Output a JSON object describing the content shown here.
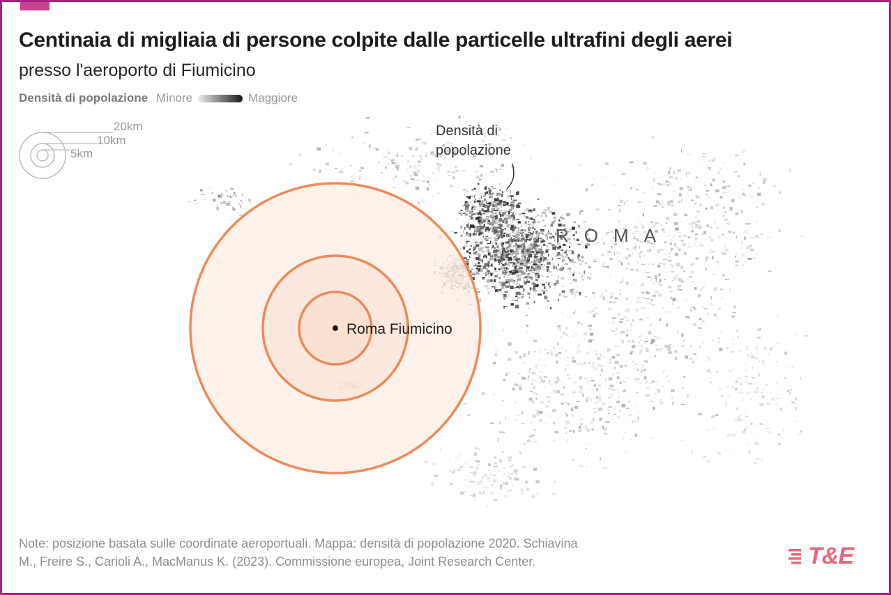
{
  "title": "Centinaia di migliaia di persone colpite dalle particelle ultrafini degli aerei",
  "subtitle": "presso l'aeroporto di Fiumicino",
  "legend": {
    "label": "Densità di popolazione",
    "min_label": "Minore",
    "max_label": "Maggiore"
  },
  "scale": {
    "labels": [
      "20km",
      "10km",
      "5km"
    ]
  },
  "map": {
    "radii_km": [
      20,
      10,
      5
    ],
    "airport_label": "Roma Fiumicino",
    "density_annotation_line1": "Densità di",
    "density_annotation_line2": "popolazione",
    "city_label": "ROMA",
    "ring_color": "#ec8a5c",
    "ring_fill": "#fde9de"
  },
  "note": {
    "line1": "Note: posizione basata sulle coordinate aeroportuali. Mappa: densità di popolazione 2020. Schiavina",
    "line2": "M., Freire S., Carioli A., MacManus K. (2023). Commissione europea, Joint Research Center."
  },
  "logo": {
    "text": "T&E",
    "color": "#e6677a"
  },
  "frame_color": "#a8237e"
}
